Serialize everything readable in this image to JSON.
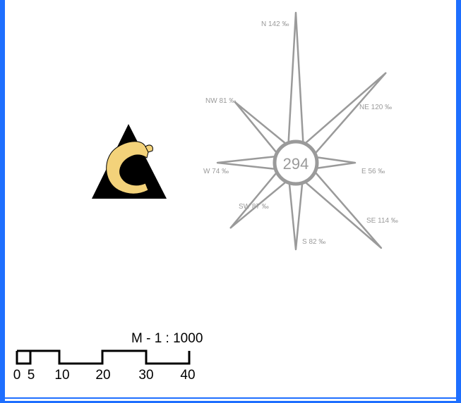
{
  "colors": {
    "frame": "#1e6fff",
    "rose": "#9a9a9a",
    "logo_fill": "#f3d27a",
    "logo_dark": "#000000"
  },
  "logo": {
    "icon": "letter-c-on-triangle-logo"
  },
  "wind_rose": {
    "center_value": "294",
    "directions": [
      {
        "key": "N",
        "label": "N 142 ‰",
        "value": 142
      },
      {
        "key": "NE",
        "label": "NE 120 ‰",
        "value": 120
      },
      {
        "key": "E",
        "label": "E 56 ‰",
        "value": 56
      },
      {
        "key": "SE",
        "label": "SE 114 ‰",
        "value": 114
      },
      {
        "key": "S",
        "label": "S 82 ‰",
        "value": 82
      },
      {
        "key": "SW",
        "label": "SW 87 ‰",
        "value": 87
      },
      {
        "key": "W",
        "label": "W 74 ‰",
        "value": 74
      },
      {
        "key": "NW",
        "label": "NW 81 ‰",
        "value": 81
      }
    ]
  },
  "scale_bar": {
    "title": "M - 1 : 1000",
    "ticks": [
      "0",
      "5",
      "10",
      "20",
      "30",
      "40"
    ]
  }
}
